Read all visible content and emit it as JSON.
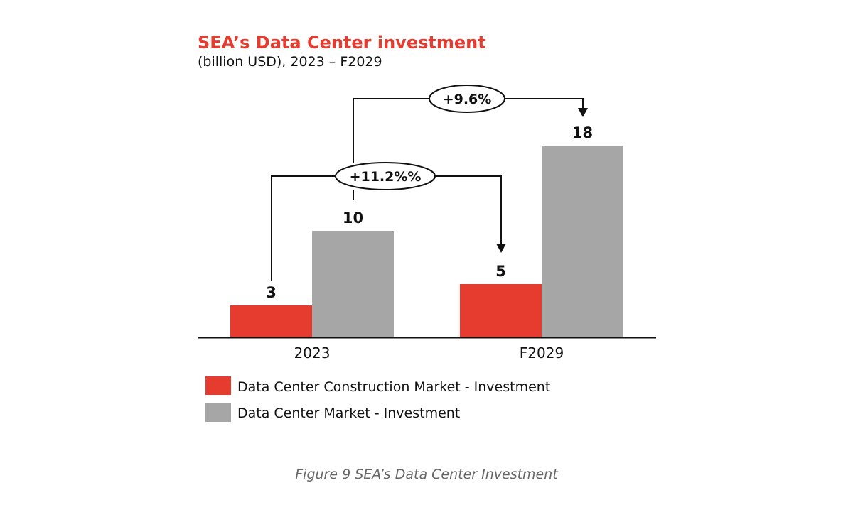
{
  "chart_data": {
    "type": "bar",
    "title": "SEA’s Data Center investment",
    "subtitle": "(billion USD), 2023 – F2029",
    "categories": [
      "2023",
      "F2029"
    ],
    "series": [
      {
        "name": "Data Center Construction Market - Investment",
        "values": [
          3,
          5
        ],
        "color": "#e63c2f"
      },
      {
        "name": "Data Center Market - Investment",
        "values": [
          10,
          18
        ],
        "color": "#a6a6a6"
      }
    ],
    "annotations": [
      {
        "text": "+11.2%%",
        "from": "2023 Data Center Construction Market - Investment",
        "to": "F2029 Data Center Construction Market - Investment"
      },
      {
        "text": "+9.6%",
        "from": "2023 Data Center Market - Investment",
        "to": "F2029 Data Center Market - Investment"
      }
    ],
    "legend_position": "bottom",
    "grid": false,
    "caption": "Figure 9 SEA’s Data Center Investment"
  }
}
